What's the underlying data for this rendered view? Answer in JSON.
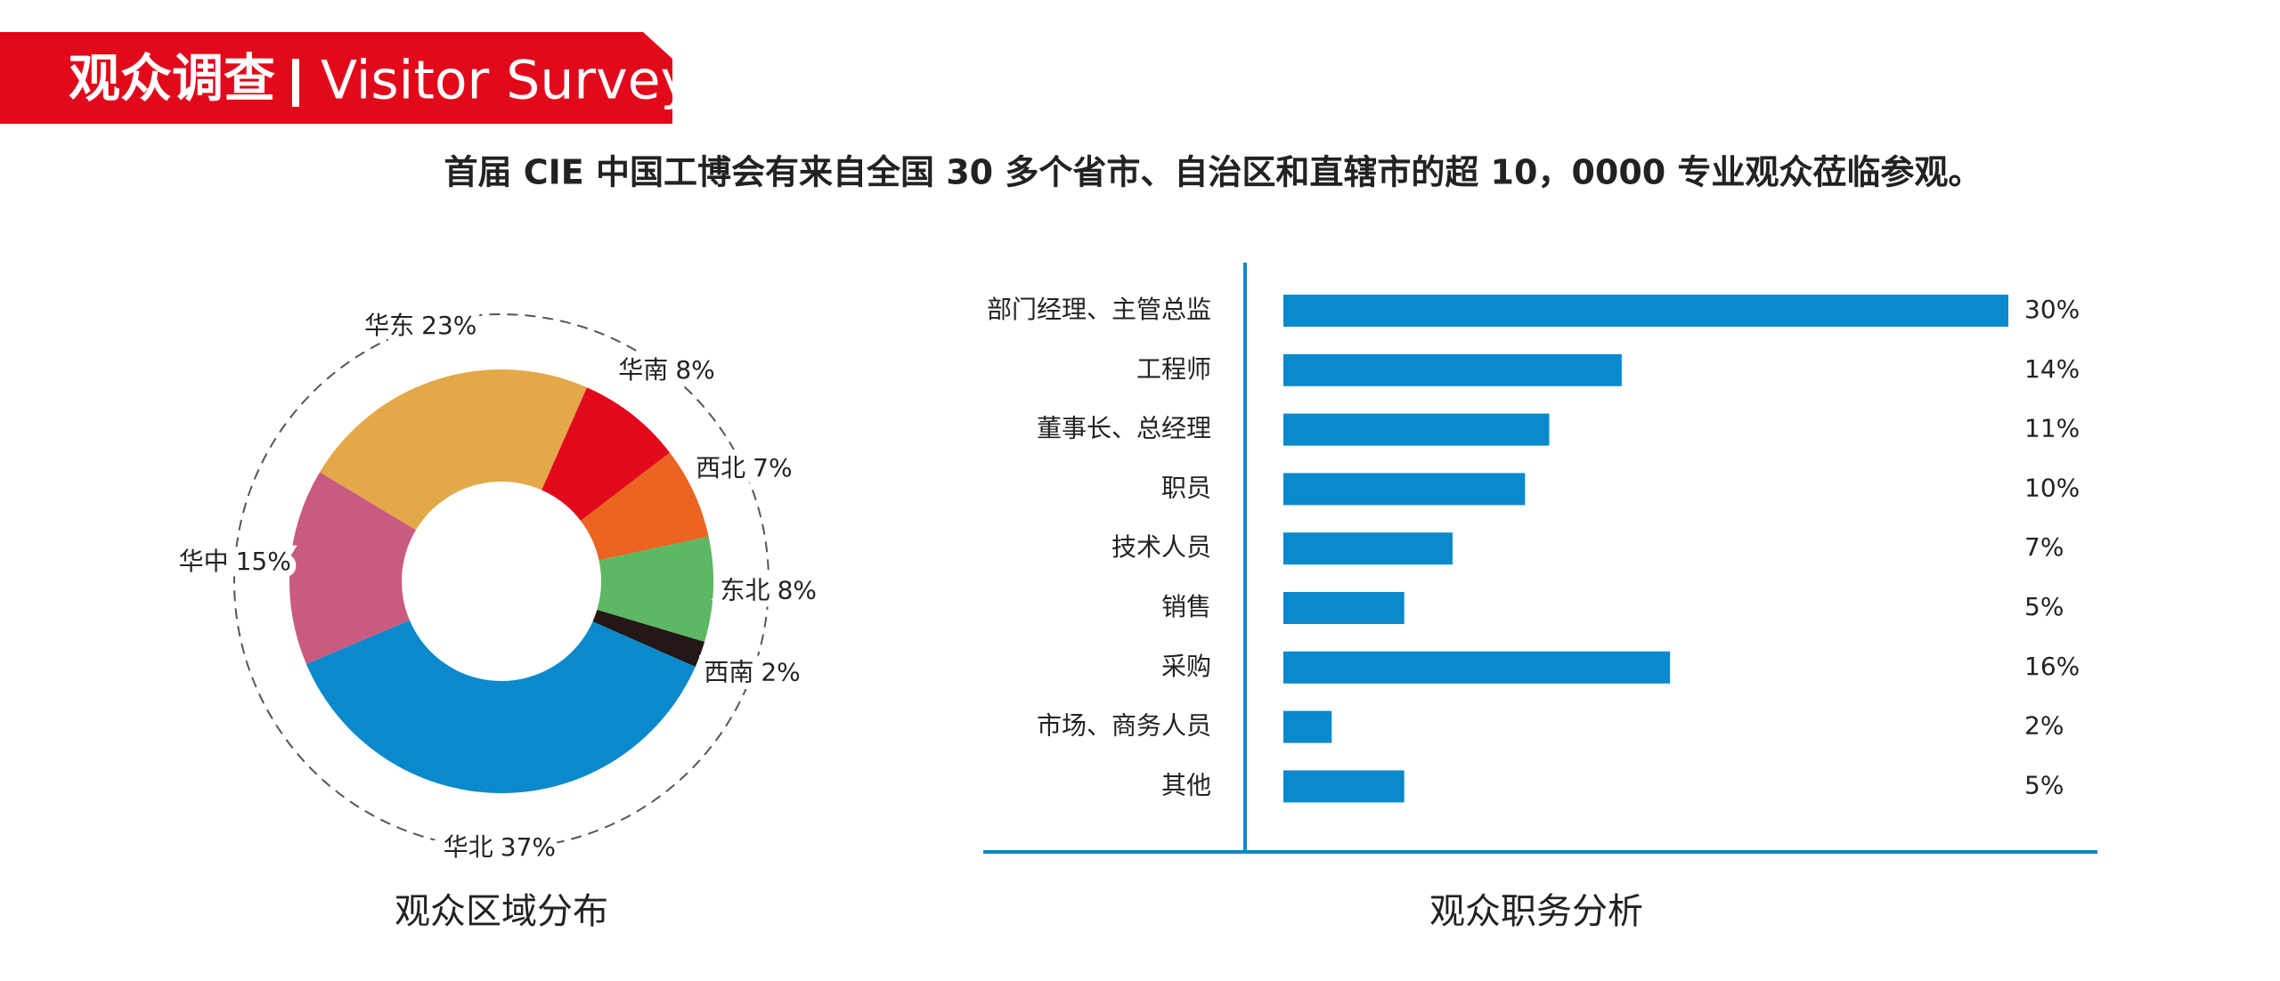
{
  "header": {
    "title": "观众调查",
    "title_en": "Visitor Survey",
    "subtitle": "首届 CIE 中国工博会有来自全国 30 多个省市、自治区和直辖市的超 10，0000 专业观众莅临参观。"
  },
  "chart_data": [
    {
      "type": "pie",
      "title": "观众区域分布",
      "categories": [
        "华东",
        "华南",
        "西北",
        "东北",
        "西南",
        "华北",
        "华中"
      ],
      "values": [
        23,
        8,
        7,
        8,
        2,
        37,
        15
      ],
      "value_labels": [
        "23%",
        "8%",
        "7%",
        "8%",
        "2%",
        "37%",
        "15%"
      ],
      "colors": [
        "#e3a948",
        "#e2091b",
        "#eb6421",
        "#5cb862",
        "#231815",
        "#0a89cd",
        "#c95b80"
      ]
    },
    {
      "type": "bar",
      "title": "观众职务分析",
      "categories": [
        "部门经理、主管总监",
        "工程师",
        "董事长、总经理",
        "职员",
        "技术人员",
        "销售",
        "采购",
        "市场、商务人员",
        "其他"
      ],
      "values": [
        30,
        14,
        11,
        10,
        7,
        5,
        16,
        2,
        5
      ],
      "value_labels": [
        "30%",
        "14%",
        "11%",
        "10%",
        "7%",
        "5%",
        "16%",
        "2%",
        "5%"
      ],
      "color": "#0a89cd",
      "xlim": [
        0,
        30
      ]
    }
  ]
}
